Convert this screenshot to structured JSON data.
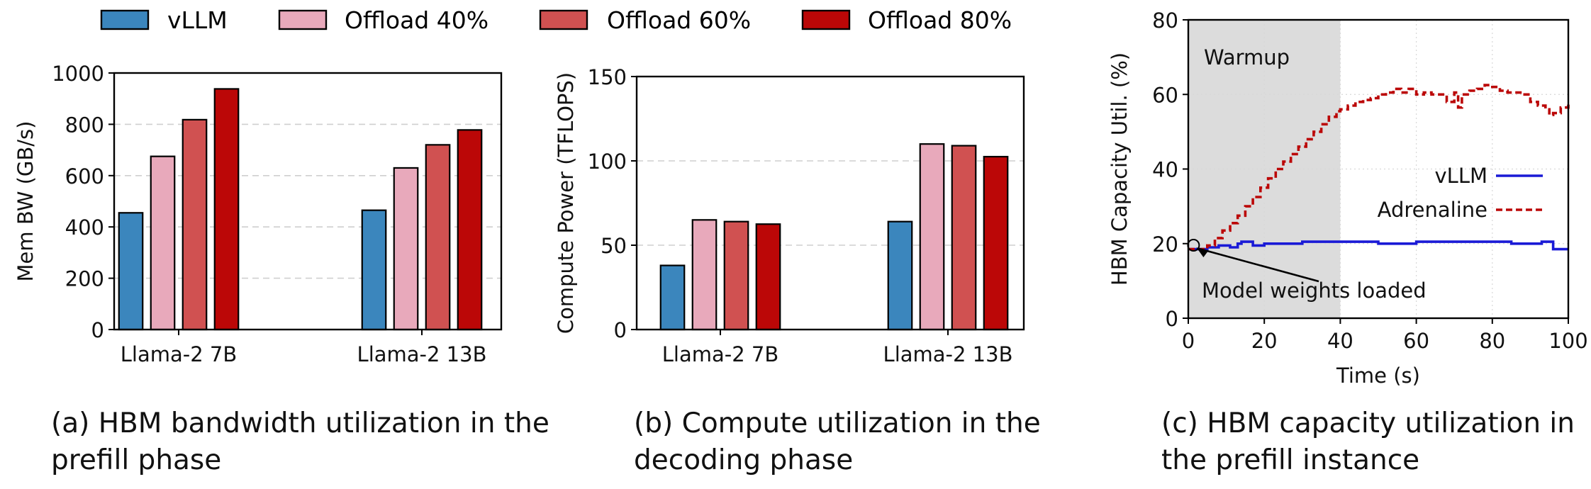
{
  "legend": [
    {
      "label": "vLLM",
      "color": "#3b86bd"
    },
    {
      "label": "Offload 40%",
      "color": "#e8a9bb"
    },
    {
      "label": "Offload 60%",
      "color": "#d05151"
    },
    {
      "label": "Offload 80%",
      "color": "#bb0707"
    }
  ],
  "captions": {
    "a": {
      "line1": "(a) HBM bandwidth utilization in the",
      "line2": "prefill phase"
    },
    "b": {
      "line1": "(b) Compute utilization in the",
      "line2": "decoding phase"
    },
    "c": {
      "line1": "(c) HBM capacity utilization in",
      "line2": "the prefill instance"
    }
  },
  "chart_data": [
    {
      "type": "bar",
      "id": "a",
      "title": "",
      "xlabel": "",
      "ylabel": "Mem BW (GB/s)",
      "ylim": [
        0,
        1000
      ],
      "yticks": [
        "0",
        "200",
        "400",
        "600",
        "800",
        "1000"
      ],
      "grid": "horizontal dashed",
      "categories": [
        "Llama-2 7B",
        "Llama-2 13B"
      ],
      "series": [
        {
          "name": "vLLM",
          "values": [
            455,
            465
          ]
        },
        {
          "name": "Offload 40%",
          "values": [
            675,
            630
          ]
        },
        {
          "name": "Offload 60%",
          "values": [
            818,
            720
          ]
        },
        {
          "name": "Offload 80%",
          "values": [
            938,
            778
          ]
        }
      ]
    },
    {
      "type": "bar",
      "id": "b",
      "title": "",
      "xlabel": "",
      "ylabel": "Compute Power (TFLOPS)",
      "ylim": [
        0,
        150
      ],
      "yticks": [
        "0",
        "50",
        "100",
        "150"
      ],
      "grid": "horizontal dashed",
      "categories": [
        "Llama-2 7B",
        "Llama-2 13B"
      ],
      "series": [
        {
          "name": "vLLM",
          "values": [
            38,
            64
          ]
        },
        {
          "name": "Offload 40%",
          "values": [
            65,
            110
          ]
        },
        {
          "name": "Offload 60%",
          "values": [
            64,
            109
          ]
        },
        {
          "name": "Offload 80%",
          "values": [
            62.5,
            102.5
          ]
        }
      ]
    },
    {
      "type": "line",
      "id": "c",
      "title": "",
      "xlabel": "Time (s)",
      "ylabel": "HBM Capacity Util. (%)",
      "xlim": [
        0,
        100
      ],
      "ylim": [
        0,
        80
      ],
      "xticks": [
        "0",
        "20",
        "40",
        "60",
        "80",
        "100"
      ],
      "yticks": [
        "0",
        "20",
        "40",
        "60",
        "80"
      ],
      "grid": "dotted",
      "legend_position": "center-right",
      "shaded_region": {
        "x": [
          0,
          40
        ],
        "label": "Warmup"
      },
      "annotation": {
        "text": "Model weights loaded",
        "x": 1,
        "y": 19
      },
      "series": [
        {
          "name": "vLLM",
          "color": "#1a1ad6",
          "style": "solid",
          "x": [
            0,
            3,
            5,
            8,
            11,
            13,
            14,
            17,
            20,
            25,
            30,
            35,
            40,
            45,
            50,
            55,
            60,
            65,
            70,
            75,
            80,
            85,
            90,
            93,
            95,
            96,
            98,
            100
          ],
          "y": [
            18.5,
            18.5,
            19,
            19.5,
            19,
            20,
            20.5,
            19.5,
            20,
            20,
            20.5,
            20.5,
            20.5,
            20.5,
            20,
            20,
            20.5,
            20.5,
            20.5,
            20.5,
            20.5,
            20,
            20,
            20.5,
            20.5,
            18.5,
            18.5,
            18.5
          ]
        },
        {
          "name": "Adrenaline",
          "color": "#bb0707",
          "style": "dashed",
          "x": [
            0,
            3,
            5,
            7,
            9,
            11,
            13,
            15,
            17,
            19,
            21,
            23,
            25,
            27,
            29,
            31,
            33,
            35,
            37,
            39,
            40,
            42,
            44,
            46,
            48,
            50,
            52,
            54,
            56,
            58,
            60,
            62,
            64,
            66,
            68,
            70,
            71,
            72,
            74,
            76,
            78,
            80,
            82,
            84,
            86,
            88,
            90,
            92,
            94,
            95,
            96,
            98,
            100
          ],
          "y": [
            18.5,
            18.5,
            19.5,
            21.5,
            23.5,
            25.5,
            27.5,
            30,
            32.5,
            35,
            37.5,
            40,
            42,
            44,
            46,
            48,
            50,
            52,
            54,
            55.5,
            56,
            57,
            58,
            58.5,
            59,
            60,
            60.5,
            61.5,
            60.5,
            61.5,
            60,
            60.5,
            60,
            60,
            58,
            60.5,
            56.5,
            60,
            61,
            61.5,
            62.5,
            62,
            61,
            60.5,
            60.5,
            60,
            58,
            57,
            56,
            54.5,
            55,
            56.5,
            57.5
          ]
        }
      ]
    }
  ]
}
